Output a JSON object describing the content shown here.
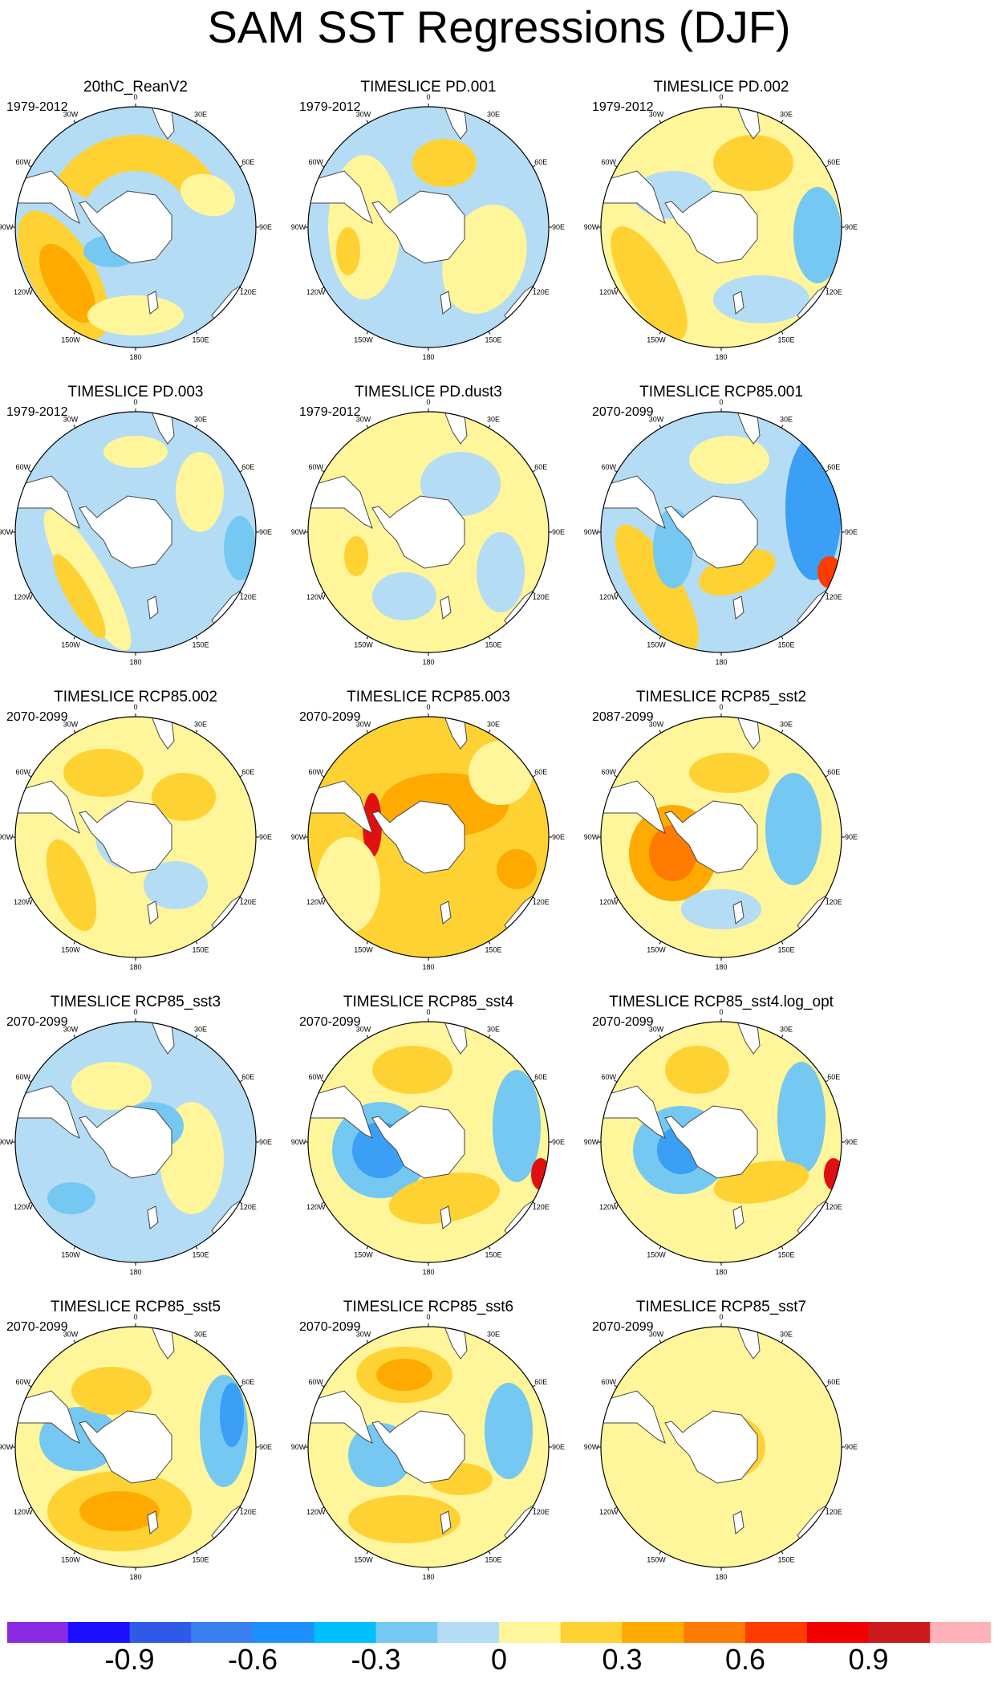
{
  "figure": {
    "title": "SAM SST Regressions (DJF)"
  },
  "panels": [
    {
      "title": "20thC_ReanV2",
      "period": "1979-2012",
      "pattern": "rean"
    },
    {
      "title": "TIMESLICE PD.001",
      "period": "1979-2012",
      "pattern": "pd_weak"
    },
    {
      "title": "TIMESLICE PD.002",
      "period": "1979-2012",
      "pattern": "pd_weak2"
    },
    {
      "title": "TIMESLICE PD.003",
      "period": "1979-2012",
      "pattern": "pd_weak3"
    },
    {
      "title": "TIMESLICE PD.dust3",
      "period": "1979-2012",
      "pattern": "pd_weak4"
    },
    {
      "title": "TIMESLICE RCP85.001",
      "period": "2070-2099",
      "pattern": "rcp_dipole"
    },
    {
      "title": "TIMESLICE RCP85.002",
      "period": "2070-2099",
      "pattern": "rcp_warm"
    },
    {
      "title": "TIMESLICE RCP85.003",
      "period": "2070-2099",
      "pattern": "rcp_hot"
    },
    {
      "title": "TIMESLICE RCP85_sst2",
      "period": "2087-2099",
      "pattern": "rcp_mixed"
    },
    {
      "title": "TIMESLICE RCP85_sst3",
      "period": "2070-2099",
      "pattern": "rcp_cool"
    },
    {
      "title": "TIMESLICE RCP85_sst4",
      "period": "2070-2099",
      "pattern": "rcp_dipole2"
    },
    {
      "title": "TIMESLICE RCP85_sst4.log_opt",
      "period": "2070-2099",
      "pattern": "rcp_dipole3"
    },
    {
      "title": "TIMESLICE RCP85_sst5",
      "period": "2070-2099",
      "pattern": "rcp_dipole4"
    },
    {
      "title": "TIMESLICE RCP85_sst6",
      "period": "2070-2099",
      "pattern": "rcp_dipole5"
    },
    {
      "title": "TIMESLICE RCP85_sst7",
      "period": "2070-2099",
      "pattern": "flat"
    }
  ],
  "map_labels": {
    "lon_0": "0",
    "lon_30e": "30E",
    "lon_60e": "60E",
    "lon_90e": "90E",
    "lon_120e": "120E",
    "lon_150e": "150E",
    "lon_180": "180",
    "lon_150w": "150W",
    "lon_120w": "120W",
    "lon_90w": "90W",
    "lon_60w": "60W",
    "lon_30w": "30W"
  },
  "colorbar": {
    "colors": [
      "#8a2be2",
      "#1a10ff",
      "#2f5ae8",
      "#3a7ff0",
      "#1e90ff",
      "#00bfff",
      "#74c8f2",
      "#b4dcf5",
      "#fff59a",
      "#ffd233",
      "#ffaa00",
      "#ff7a00",
      "#ff3c00",
      "#f00000",
      "#cc1a1a",
      "#ffb3b8"
    ],
    "labels": [
      "-0.9",
      "-0.6",
      "-0.3",
      "0",
      "0.3",
      "0.6",
      "0.9"
    ]
  }
}
